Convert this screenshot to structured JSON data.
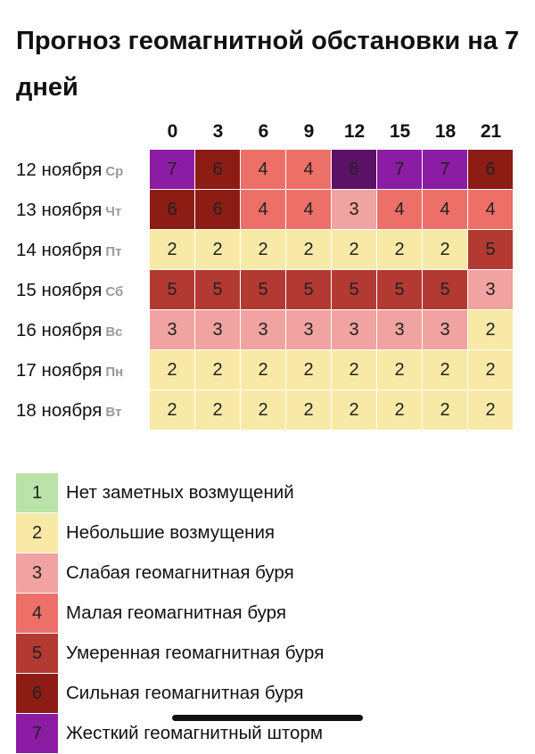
{
  "title": "Прогноз геомагнитной обстановки на 7 дней",
  "colors": {
    "1": "#b9e3a9",
    "2": "#f8e9a6",
    "3": "#f0a3a0",
    "4": "#ec7068",
    "5": "#b33933",
    "6": "#8c1c14",
    "7": "#8c1ca3",
    "8": "#5a1166"
  },
  "chart_data": {
    "type": "heatmap",
    "title": "Прогноз геомагнитной обстановки на 7 дней",
    "x": [
      "0",
      "3",
      "6",
      "9",
      "12",
      "15",
      "18",
      "21"
    ],
    "rows": [
      {
        "date": "12 ноября",
        "day": "Ср",
        "values": [
          7,
          6,
          4,
          4,
          8,
          7,
          7,
          6
        ]
      },
      {
        "date": "13 ноября",
        "day": "Чт",
        "values": [
          6,
          6,
          4,
          4,
          3,
          4,
          4,
          4
        ]
      },
      {
        "date": "14 ноября",
        "day": "Пт",
        "values": [
          2,
          2,
          2,
          2,
          2,
          2,
          2,
          5
        ]
      },
      {
        "date": "15 ноября",
        "day": "Сб",
        "values": [
          5,
          5,
          5,
          5,
          5,
          5,
          5,
          3
        ]
      },
      {
        "date": "16 ноября",
        "day": "Вс",
        "values": [
          3,
          3,
          3,
          3,
          3,
          3,
          3,
          2
        ]
      },
      {
        "date": "17 ноября",
        "day": "Пн",
        "values": [
          2,
          2,
          2,
          2,
          2,
          2,
          2,
          2
        ]
      },
      {
        "date": "18 ноября",
        "day": "Вт",
        "values": [
          2,
          2,
          2,
          2,
          2,
          2,
          2,
          2
        ]
      }
    ],
    "legend": [
      {
        "level": 1,
        "label": "Нет заметных возмущений"
      },
      {
        "level": 2,
        "label": "Небольшие возмущения"
      },
      {
        "level": 3,
        "label": "Слабая геомагнитная буря"
      },
      {
        "level": 4,
        "label": "Малая геомагнитная буря"
      },
      {
        "level": 5,
        "label": "Умеренная геомагнитная буря"
      },
      {
        "level": 6,
        "label": "Сильная геомагнитная буря"
      },
      {
        "level": 7,
        "label": "Жесткий геомагнитный шторм"
      }
    ]
  }
}
